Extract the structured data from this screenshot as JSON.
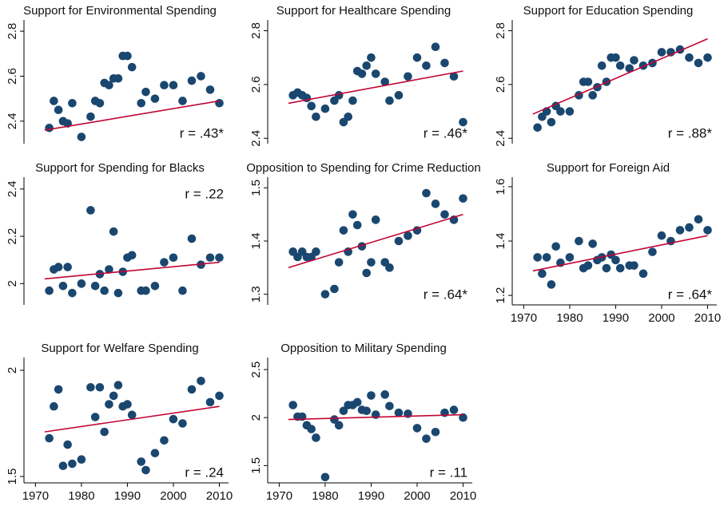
{
  "chart_data": [
    {
      "type": "scatter",
      "title": "Support for Environmental Spending",
      "annotation": "r = .43*",
      "color": "#1a476f",
      "fit_color": "#c10534",
      "x": [
        1973,
        1974,
        1975,
        1976,
        1977,
        1978,
        1980,
        1982,
        1983,
        1984,
        1985,
        1986,
        1987,
        1988,
        1989,
        1990,
        1991,
        1993,
        1994,
        1996,
        1998,
        2000,
        2002,
        2004,
        2006,
        2008,
        2010
      ],
      "values": [
        2.37,
        2.49,
        2.45,
        2.4,
        2.39,
        2.48,
        2.33,
        2.42,
        2.49,
        2.48,
        2.57,
        2.56,
        2.59,
        2.59,
        2.69,
        2.69,
        2.64,
        2.48,
        2.53,
        2.5,
        2.56,
        2.56,
        2.49,
        2.58,
        2.6,
        2.54,
        2.48
      ],
      "fit": {
        "x": [
          1972,
          2010
        ],
        "values": [
          2.36,
          2.49
        ]
      },
      "xlim": [
        1967.5,
        2012
      ],
      "ylim": [
        2.3,
        2.85
      ],
      "yticks": [
        2.4,
        2.6,
        2.8
      ]
    },
    {
      "type": "scatter",
      "title": "Support for Healthcare Spending",
      "annotation": "r = .46*",
      "color": "#1a476f",
      "fit_color": "#c10534",
      "x": [
        1973,
        1974,
        1975,
        1976,
        1977,
        1978,
        1980,
        1982,
        1983,
        1984,
        1985,
        1986,
        1987,
        1988,
        1989,
        1990,
        1991,
        1993,
        1994,
        1996,
        1998,
        2000,
        2002,
        2004,
        2006,
        2008,
        2010
      ],
      "values": [
        2.56,
        2.57,
        2.56,
        2.55,
        2.52,
        2.48,
        2.51,
        2.54,
        2.56,
        2.46,
        2.48,
        2.54,
        2.65,
        2.64,
        2.67,
        2.7,
        2.64,
        2.61,
        2.54,
        2.56,
        2.63,
        2.7,
        2.67,
        2.74,
        2.68,
        2.63,
        2.46
      ],
      "fit": {
        "x": [
          1972,
          2010
        ],
        "values": [
          2.53,
          2.65
        ]
      },
      "xlim": [
        1967.5,
        2012
      ],
      "ylim": [
        2.38,
        2.84
      ],
      "yticks": [
        2.4,
        2.6,
        2.8
      ]
    },
    {
      "type": "scatter",
      "title": "Support for Education Spending",
      "annotation": "r = .88*",
      "color": "#1a476f",
      "fit_color": "#c10534",
      "x": [
        1973,
        1974,
        1975,
        1976,
        1977,
        1978,
        1980,
        1982,
        1983,
        1984,
        1985,
        1986,
        1987,
        1988,
        1989,
        1990,
        1991,
        1993,
        1994,
        1996,
        1998,
        2000,
        2002,
        2004,
        2006,
        2008,
        2010
      ],
      "values": [
        2.44,
        2.48,
        2.5,
        2.46,
        2.52,
        2.5,
        2.5,
        2.56,
        2.61,
        2.61,
        2.56,
        2.59,
        2.67,
        2.61,
        2.7,
        2.7,
        2.67,
        2.66,
        2.69,
        2.67,
        2.68,
        2.72,
        2.72,
        2.73,
        2.7,
        2.68,
        2.7
      ],
      "fit": {
        "x": [
          1972,
          2010
        ],
        "values": [
          2.49,
          2.77
        ]
      },
      "xlim": [
        1967.5,
        2012
      ],
      "ylim": [
        2.38,
        2.84
      ],
      "yticks": [
        2.4,
        2.6,
        2.8
      ]
    },
    {
      "type": "scatter",
      "title": "Support for Spending for Blacks",
      "annotation": "r = .22",
      "color": "#1a476f",
      "fit_color": "#c10534",
      "x": [
        1973,
        1974,
        1975,
        1976,
        1977,
        1978,
        1980,
        1982,
        1983,
        1984,
        1985,
        1986,
        1987,
        1988,
        1989,
        1990,
        1991,
        1993,
        1994,
        1996,
        1998,
        2000,
        2002,
        2004,
        2006,
        2008,
        2010
      ],
      "values": [
        1.97,
        2.06,
        2.07,
        1.99,
        2.07,
        1.96,
        2.0,
        2.31,
        1.99,
        2.04,
        1.97,
        2.06,
        2.22,
        1.96,
        2.05,
        2.11,
        2.12,
        1.97,
        1.97,
        1.99,
        2.09,
        2.11,
        1.97,
        2.19,
        2.08,
        2.11,
        2.11
      ],
      "fit": {
        "x": [
          1972,
          2010
        ],
        "values": [
          2.02,
          2.09
        ]
      },
      "xlim": [
        1967.5,
        2012
      ],
      "ylim": [
        1.91,
        2.45
      ],
      "yticks": [
        2,
        2.2,
        2.4
      ]
    },
    {
      "type": "scatter",
      "title": "Opposition to Spending for Crime Reduction",
      "annotation": "r = .64*",
      "color": "#1a476f",
      "fit_color": "#c10534",
      "x": [
        1973,
        1974,
        1975,
        1976,
        1977,
        1978,
        1980,
        1982,
        1983,
        1984,
        1985,
        1986,
        1987,
        1988,
        1989,
        1990,
        1991,
        1993,
        1994,
        1996,
        1998,
        2000,
        2002,
        2004,
        2006,
        2008,
        2010
      ],
      "values": [
        1.38,
        1.37,
        1.38,
        1.37,
        1.37,
        1.38,
        1.3,
        1.31,
        1.36,
        1.42,
        1.38,
        1.45,
        1.43,
        1.39,
        1.34,
        1.36,
        1.44,
        1.36,
        1.35,
        1.4,
        1.41,
        1.42,
        1.49,
        1.47,
        1.45,
        1.44,
        1.48
      ],
      "fit": {
        "x": [
          1972,
          2010
        ],
        "values": [
          1.35,
          1.45
        ]
      },
      "xlim": [
        1967.5,
        2012
      ],
      "ylim": [
        1.28,
        1.52
      ],
      "yticks": [
        1.3,
        1.4,
        1.5
      ]
    },
    {
      "type": "scatter",
      "title": "Support for Foreign Aid",
      "annotation": "r = .64*",
      "color": "#1a476f",
      "fit_color": "#c10534",
      "x": [
        1973,
        1974,
        1975,
        1976,
        1977,
        1978,
        1980,
        1982,
        1983,
        1984,
        1985,
        1986,
        1987,
        1988,
        1989,
        1990,
        1991,
        1993,
        1994,
        1996,
        1998,
        2000,
        2002,
        2004,
        2006,
        2008,
        2010
      ],
      "values": [
        1.34,
        1.28,
        1.34,
        1.24,
        1.38,
        1.32,
        1.34,
        1.4,
        1.3,
        1.31,
        1.39,
        1.33,
        1.34,
        1.3,
        1.35,
        1.33,
        1.3,
        1.31,
        1.31,
        1.28,
        1.36,
        1.42,
        1.4,
        1.44,
        1.45,
        1.48,
        1.44
      ],
      "fit": {
        "x": [
          1972,
          2010
        ],
        "values": [
          1.29,
          1.42
        ]
      },
      "xlim": [
        1967.5,
        2012
      ],
      "ylim": [
        1.165,
        1.635
      ],
      "yticks": [
        1.2,
        1.4,
        1.6
      ],
      "xticks": [
        1970,
        1980,
        1990,
        2000,
        2010
      ]
    },
    {
      "type": "scatter",
      "title": "Support for Welfare Spending",
      "annotation": "r = .24",
      "color": "#1a476f",
      "fit_color": "#c10534",
      "x": [
        1973,
        1974,
        1975,
        1976,
        1977,
        1978,
        1980,
        1982,
        1983,
        1984,
        1985,
        1986,
        1987,
        1988,
        1989,
        1990,
        1991,
        1993,
        1994,
        1996,
        1998,
        2000,
        2002,
        2004,
        2006,
        2008,
        2010
      ],
      "values": [
        1.68,
        1.83,
        1.91,
        1.55,
        1.65,
        1.56,
        1.58,
        1.92,
        1.78,
        1.92,
        1.71,
        1.84,
        1.88,
        1.93,
        1.83,
        1.84,
        1.79,
        1.57,
        1.53,
        1.61,
        1.67,
        1.77,
        1.75,
        1.91,
        1.95,
        1.85,
        1.88
      ],
      "fit": {
        "x": [
          1972,
          2010
        ],
        "values": [
          1.71,
          1.83
        ]
      },
      "xlim": [
        1967.5,
        2012
      ],
      "ylim": [
        1.47,
        2.06
      ],
      "yticks": [
        1.5,
        2
      ],
      "xticks": [
        1970,
        1980,
        1990,
        2000,
        2010
      ]
    },
    {
      "type": "scatter",
      "title": "Opposition to Military Spending",
      "annotation": "r = .11",
      "color": "#1a476f",
      "fit_color": "#c10534",
      "x": [
        1973,
        1974,
        1975,
        1976,
        1977,
        1978,
        1980,
        1982,
        1983,
        1984,
        1985,
        1986,
        1987,
        1988,
        1989,
        1990,
        1991,
        1993,
        1994,
        1996,
        1998,
        2000,
        2002,
        2004,
        2006,
        2008,
        2010
      ],
      "values": [
        2.13,
        2.01,
        2.01,
        1.92,
        1.88,
        1.79,
        1.38,
        1.98,
        1.92,
        2.07,
        2.13,
        2.13,
        2.16,
        2.08,
        2.07,
        2.23,
        2.03,
        2.24,
        2.12,
        2.05,
        2.04,
        1.89,
        1.78,
        1.85,
        2.05,
        2.08,
        2.0
      ],
      "fit": {
        "x": [
          1972,
          2010
        ],
        "values": [
          1.98,
          2.03
        ]
      },
      "xlim": [
        1967.5,
        2012
      ],
      "ylim": [
        1.32,
        2.625
      ],
      "yticks": [
        1.5,
        2,
        2.5
      ],
      "xticks": [
        1970,
        1980,
        1990,
        2000,
        2010
      ]
    }
  ]
}
